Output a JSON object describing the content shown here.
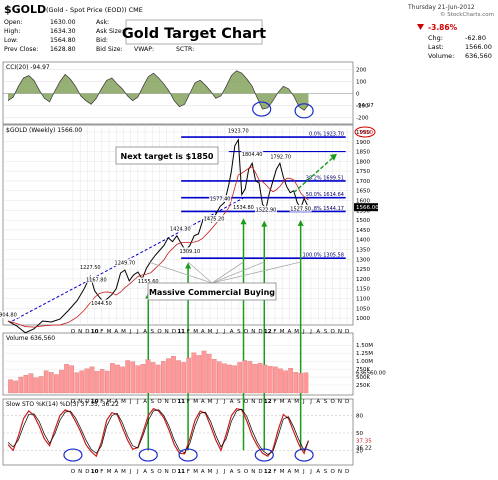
{
  "header": {
    "symbol": "$GOLD",
    "name": "(Gold - Spot Price (EOD)) CME",
    "date": "Thursday  21-Jun-2012",
    "credit": "© StockCharts.com",
    "quote_rows": [
      {
        "l": "Open:",
        "v": "1630.00",
        "l2": "Ask:",
        "v2": ""
      },
      {
        "l": "High:",
        "v": "1634.30",
        "l2": "Ask Size:",
        "v2": ""
      },
      {
        "l": "Low:",
        "v": "1564.80",
        "l2": "Bid:",
        "v2": ""
      },
      {
        "l": "Prev Close:",
        "v": "1628.80",
        "l2": "Bid Size:",
        "v2": ""
      }
    ],
    "quote_row2_extra": [
      "Last:",
      "VWAP:",
      "SCTR:"
    ],
    "change_pct": "-3.86%",
    "chg_label": "Chg:",
    "chg": "-62.80",
    "last_label": "Last:",
    "last": "1566.00",
    "volume_label": "Volume:",
    "volume": "636,560",
    "down_color": "#d00000"
  },
  "title": "Gold Target Chart",
  "annotations": {
    "target": "Next target is $1850",
    "buying": "Massive Commercial Buying"
  },
  "chart_data": [
    {
      "type": "line",
      "id": "cci",
      "title": "CCI(20) -94.97",
      "y_ticks": [
        200,
        100,
        0,
        -100,
        -200
      ],
      "last_label": "-94.97",
      "x": [
        2009.0,
        2009.06,
        2009.12,
        2009.18,
        2009.24,
        2009.3,
        2009.36,
        2009.42,
        2009.48,
        2009.54,
        2009.6,
        2009.66,
        2009.72,
        2009.78,
        2009.84,
        2009.9,
        2009.96,
        2010.02,
        2010.08,
        2010.14,
        2010.2,
        2010.26,
        2010.32,
        2010.38,
        2010.44,
        2010.5,
        2010.56,
        2010.62,
        2010.68,
        2010.74,
        2010.8,
        2010.86,
        2010.92,
        2010.98,
        2011.04,
        2011.1,
        2011.16,
        2011.22,
        2011.28,
        2011.34,
        2011.4,
        2011.46,
        2011.52,
        2011.58,
        2011.64,
        2011.7,
        2011.76,
        2011.82,
        2011.88,
        2011.94,
        2012.0,
        2012.06,
        2012.12,
        2012.18,
        2012.24,
        2012.3,
        2012.36,
        2012.42,
        2012.47
      ],
      "values": [
        -60,
        -30,
        60,
        130,
        150,
        110,
        30,
        -40,
        -70,
        20,
        100,
        160,
        120,
        60,
        -20,
        -60,
        -90,
        -40,
        40,
        110,
        130,
        80,
        40,
        -20,
        -60,
        -30,
        60,
        140,
        170,
        130,
        80,
        20,
        -60,
        -110,
        -90,
        0,
        90,
        110,
        70,
        20,
        -40,
        -20,
        60,
        150,
        190,
        170,
        120,
        60,
        -40,
        -130,
        -120,
        -60,
        10,
        60,
        40,
        -20,
        -110,
        -140,
        -95
      ]
    },
    {
      "type": "line",
      "id": "price",
      "title": "$GOLD (Weekly) 1566.00",
      "y_ticks": [
        1950,
        1900,
        1850,
        1800,
        1750,
        1700,
        1650,
        1600,
        1550,
        1500,
        1450,
        1400,
        1350,
        1300,
        1250,
        1200,
        1150,
        1100,
        1050,
        1000
      ],
      "x": [
        2009.0,
        2009.1,
        2009.2,
        2009.3,
        2009.4,
        2009.5,
        2009.6,
        2009.7,
        2009.8,
        2009.88,
        2009.95,
        2010.0,
        2010.05,
        2010.1,
        2010.15,
        2010.2,
        2010.25,
        2010.3,
        2010.35,
        2010.4,
        2010.45,
        2010.5,
        2010.55,
        2010.6,
        2010.65,
        2010.7,
        2010.75,
        2010.8,
        2010.85,
        2010.9,
        2010.95,
        2011.0,
        2011.05,
        2011.1,
        2011.15,
        2011.2,
        2011.25,
        2011.3,
        2011.35,
        2011.4,
        2011.45,
        2011.5,
        2011.55,
        2011.58,
        2011.62,
        2011.66,
        2011.7,
        2011.74,
        2011.78,
        2011.82,
        2011.86,
        2011.9,
        2011.94,
        2011.98,
        2012.02,
        2012.06,
        2012.1,
        2012.14,
        2012.18,
        2012.22,
        2012.26,
        2012.3,
        2012.34,
        2012.38,
        2012.42,
        2012.47
      ],
      "values": [
        985,
        960,
        925,
        945,
        985,
        980,
        995,
        1040,
        1090,
        1150,
        1215,
        1140,
        1110,
        1085,
        1100,
        1120,
        1150,
        1230,
        1245,
        1190,
        1220,
        1235,
        1200,
        1255,
        1290,
        1320,
        1345,
        1370,
        1410,
        1390,
        1420,
        1380,
        1345,
        1370,
        1420,
        1430,
        1500,
        1520,
        1490,
        1530,
        1570,
        1590,
        1680,
        1750,
        1880,
        1910,
        1630,
        1660,
        1760,
        1790,
        1700,
        1690,
        1580,
        1560,
        1640,
        1700,
        1760,
        1790,
        1720,
        1670,
        1640,
        1650,
        1590,
        1560,
        1610,
        1566
      ],
      "point_labels": [
        {
          "x": 2009.0,
          "y": 985,
          "text": "904.80"
        },
        {
          "x": 2009.95,
          "y": 1227,
          "text": "1227.50"
        },
        {
          "x": 2010.02,
          "y": 1165,
          "text": "1167.80"
        },
        {
          "x": 2010.08,
          "y": 1044,
          "text": "1044.50"
        },
        {
          "x": 2010.35,
          "y": 1250,
          "text": "1249.70"
        },
        {
          "x": 2010.62,
          "y": 1156,
          "text": "1155.60"
        },
        {
          "x": 2010.99,
          "y": 1424,
          "text": "1424.30"
        },
        {
          "x": 2011.1,
          "y": 1310,
          "text": "1309.10"
        },
        {
          "x": 2011.38,
          "y": 1475,
          "text": "1475.20"
        },
        {
          "x": 2011.45,
          "y": 1577,
          "text": "1577.40"
        },
        {
          "x": 2011.66,
          "y": 1924,
          "text": "1923.70"
        },
        {
          "x": 2011.82,
          "y": 1804,
          "text": "1804.40"
        },
        {
          "x": 2011.72,
          "y": 1535,
          "text": "1534.80"
        },
        {
          "x": 2011.98,
          "y": 1522,
          "text": "1522.90"
        },
        {
          "x": 2012.15,
          "y": 1792,
          "text": "1792.70"
        },
        {
          "x": 2012.38,
          "y": 1527,
          "text": "1527.50"
        }
      ],
      "fib_lines": [
        {
          "y": 1923.7,
          "label": "0.0%  1923.70"
        },
        {
          "y": 1850,
          "label": ""
        },
        {
          "y": 1700,
          "label": "38.2%  1699.51"
        },
        {
          "y": 1614.6,
          "label": "50.0%  1614.64"
        },
        {
          "y": 1544.2,
          "label": "61.8%  1544.17"
        },
        {
          "y": 1305.6,
          "label": "100.0%  1305.58"
        }
      ],
      "axis_markers": [
        "1950",
        "1566.00"
      ]
    },
    {
      "type": "bar",
      "id": "volume",
      "title": "Volume 636,560",
      "y_ticks_labels": [
        "1.50M",
        "1.25M",
        "1.00M",
        "750K",
        "500K",
        "250K"
      ],
      "y_ticks": [
        1500000,
        1250000,
        1000000,
        750000,
        500000,
        250000
      ],
      "last_label": "636560.00",
      "values": [
        420000,
        380000,
        500000,
        560000,
        610000,
        480000,
        520000,
        700000,
        650000,
        580000,
        720000,
        900000,
        860000,
        640000,
        700000,
        760000,
        820000,
        680000,
        740000,
        690000,
        930000,
        880000,
        820000,
        1020000,
        980000,
        860000,
        900000,
        1050000,
        960000,
        880000,
        990000,
        1080000,
        1150000,
        1020000,
        960000,
        1100000,
        1260000,
        1180000,
        1320000,
        1220000,
        1060000,
        980000,
        920000,
        880000,
        860000,
        960000,
        1020000,
        990000,
        900000,
        940000,
        880000,
        840000,
        820000,
        760000,
        700000,
        780000,
        650000,
        620000,
        636560
      ]
    },
    {
      "type": "line",
      "id": "sto",
      "title": "Slow STO %K(14) %D(3) 37.35, 36.22",
      "y_ticks": [
        80,
        50,
        20
      ],
      "last_labels": [
        "37.35",
        "36.22"
      ],
      "x": [
        2009.0,
        2009.06,
        2009.12,
        2009.18,
        2009.24,
        2009.3,
        2009.36,
        2009.42,
        2009.48,
        2009.54,
        2009.6,
        2009.66,
        2009.72,
        2009.78,
        2009.84,
        2009.9,
        2009.96,
        2010.02,
        2010.08,
        2010.14,
        2010.2,
        2010.26,
        2010.32,
        2010.38,
        2010.44,
        2010.5,
        2010.56,
        2010.62,
        2010.68,
        2010.74,
        2010.8,
        2010.86,
        2010.92,
        2010.98,
        2011.04,
        2011.1,
        2011.16,
        2011.22,
        2011.28,
        2011.34,
        2011.4,
        2011.46,
        2011.52,
        2011.58,
        2011.64,
        2011.7,
        2011.76,
        2011.82,
        2011.88,
        2011.94,
        2012.0,
        2012.06,
        2012.12,
        2012.18,
        2012.24,
        2012.3,
        2012.36,
        2012.42,
        2012.47
      ],
      "series": [
        {
          "name": "%K",
          "values": [
            30,
            20,
            45,
            75,
            88,
            80,
            62,
            40,
            28,
            55,
            80,
            90,
            86,
            70,
            52,
            30,
            18,
            10,
            35,
            72,
            85,
            82,
            60,
            38,
            22,
            25,
            52,
            80,
            92,
            88,
            76,
            55,
            30,
            15,
            14,
            40,
            72,
            88,
            84,
            62,
            38,
            20,
            48,
            80,
            92,
            90,
            70,
            45,
            28,
            15,
            10,
            22,
            55,
            82,
            75,
            52,
            30,
            15,
            37
          ]
        },
        {
          "name": "%D",
          "values": [
            34,
            26,
            38,
            62,
            82,
            83,
            70,
            48,
            32,
            48,
            72,
            86,
            88,
            76,
            58,
            38,
            22,
            15,
            28,
            62,
            80,
            84,
            68,
            45,
            28,
            24,
            46,
            72,
            88,
            90,
            80,
            62,
            38,
            20,
            16,
            32,
            62,
            84,
            86,
            70,
            46,
            26,
            40,
            70,
            88,
            91,
            78,
            54,
            34,
            20,
            13,
            18,
            45,
            74,
            78,
            60,
            38,
            20,
            36
          ]
        }
      ]
    }
  ],
  "x_axis": {
    "month_labels": [
      "O",
      "N",
      "D",
      "10",
      "F",
      "M",
      "A",
      "M",
      "J",
      "J",
      "A",
      "S",
      "O",
      "N",
      "D",
      "11",
      "F",
      "M",
      "A",
      "M",
      "J",
      "J",
      "A",
      "S",
      "O",
      "N",
      "D",
      "12",
      "F",
      "M",
      "A",
      "M",
      "J",
      "J",
      "A",
      "S",
      "O",
      "N",
      "D"
    ],
    "year_labels": [
      "10",
      "11",
      "12"
    ]
  },
  "colors": {
    "price_line": "#000000",
    "fib_lines": "#0000cc",
    "trend_line": "#0000cc",
    "arrow_green": "#1a9c1a",
    "oscillator": "#c81e1e",
    "cci_fill": "#6b8e3a",
    "ellipse": "#1a2ccc",
    "volume_bar": "#ff9999"
  }
}
